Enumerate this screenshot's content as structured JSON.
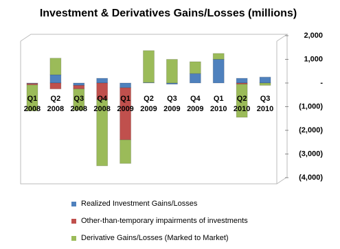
{
  "chart_data": {
    "type": "bar",
    "stacked": true,
    "title": "Investment & Derivatives Gains/Losses (millions)",
    "categories": [
      "Q1 2008",
      "Q2 2008",
      "Q3 2008",
      "Q4 2008",
      "Q1 2009",
      "Q2 2009",
      "Q3 2009",
      "Q4 2009",
      "Q1 2010",
      "Q2 2010",
      "Q3 2010"
    ],
    "series": [
      {
        "name": "Realized Investment Gains/Losses",
        "color": "#4f81bd",
        "values": [
          -20,
          350,
          -100,
          200,
          -200,
          20,
          -50,
          400,
          1000,
          200,
          250
        ]
      },
      {
        "name": "Other-than-temporary impairments of investments",
        "color": "#c0504d",
        "values": [
          -60,
          -250,
          -150,
          -700,
          -2200,
          0,
          0,
          0,
          0,
          -50,
          0
        ]
      },
      {
        "name": "Derivative Gains/Losses (Marked to Market)",
        "color": "#9bbb59",
        "values": [
          -1100,
          700,
          -900,
          -2800,
          -1000,
          1350,
          1000,
          500,
          250,
          -1400,
          -100
        ]
      }
    ],
    "ylim": [
      -4000,
      2000
    ],
    "yticks": [
      {
        "value": 2000,
        "label": "2,000"
      },
      {
        "value": 1000,
        "label": "1,000"
      },
      {
        "value": 0,
        "label": "-"
      },
      {
        "value": -1000,
        "label": "(1,000)"
      },
      {
        "value": -2000,
        "label": "(2,000)"
      },
      {
        "value": -3000,
        "label": "(3,000)"
      },
      {
        "value": -4000,
        "label": "(4,000)"
      }
    ],
    "legend": "bottom"
  }
}
